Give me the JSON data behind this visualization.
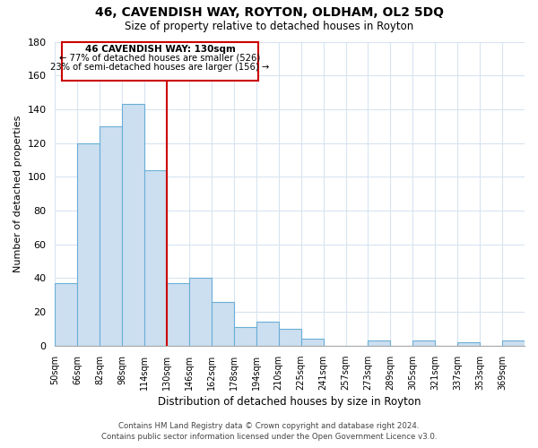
{
  "title": "46, CAVENDISH WAY, ROYTON, OLDHAM, OL2 5DQ",
  "subtitle": "Size of property relative to detached houses in Royton",
  "xlabel": "Distribution of detached houses by size in Royton",
  "ylabel": "Number of detached properties",
  "bar_color": "#ccdff0",
  "bar_edge_color": "#6aaed6",
  "bin_labels": [
    "50sqm",
    "66sqm",
    "82sqm",
    "98sqm",
    "114sqm",
    "130sqm",
    "146sqm",
    "162sqm",
    "178sqm",
    "194sqm",
    "210sqm",
    "225sqm",
    "241sqm",
    "257sqm",
    "273sqm",
    "289sqm",
    "305sqm",
    "321sqm",
    "337sqm",
    "353sqm",
    "369sqm"
  ],
  "bin_values": [
    37,
    120,
    130,
    143,
    104,
    37,
    40,
    26,
    11,
    14,
    10,
    4,
    0,
    0,
    3,
    0,
    3,
    0,
    2,
    0,
    3
  ],
  "vline_bin_index": 5,
  "vline_color": "#cc0000",
  "ylim": [
    0,
    180
  ],
  "yticks": [
    0,
    20,
    40,
    60,
    80,
    100,
    120,
    140,
    160,
    180
  ],
  "annotation_title": "46 CAVENDISH WAY: 130sqm",
  "annotation_line1": "← 77% of detached houses are smaller (526)",
  "annotation_line2": "23% of semi-detached houses are larger (156) →",
  "footer_line1": "Contains HM Land Registry data © Crown copyright and database right 2024.",
  "footer_line2": "Contains public sector information licensed under the Open Government Licence v3.0.",
  "background_color": "#ffffff",
  "grid_color": "#d8e4f0"
}
